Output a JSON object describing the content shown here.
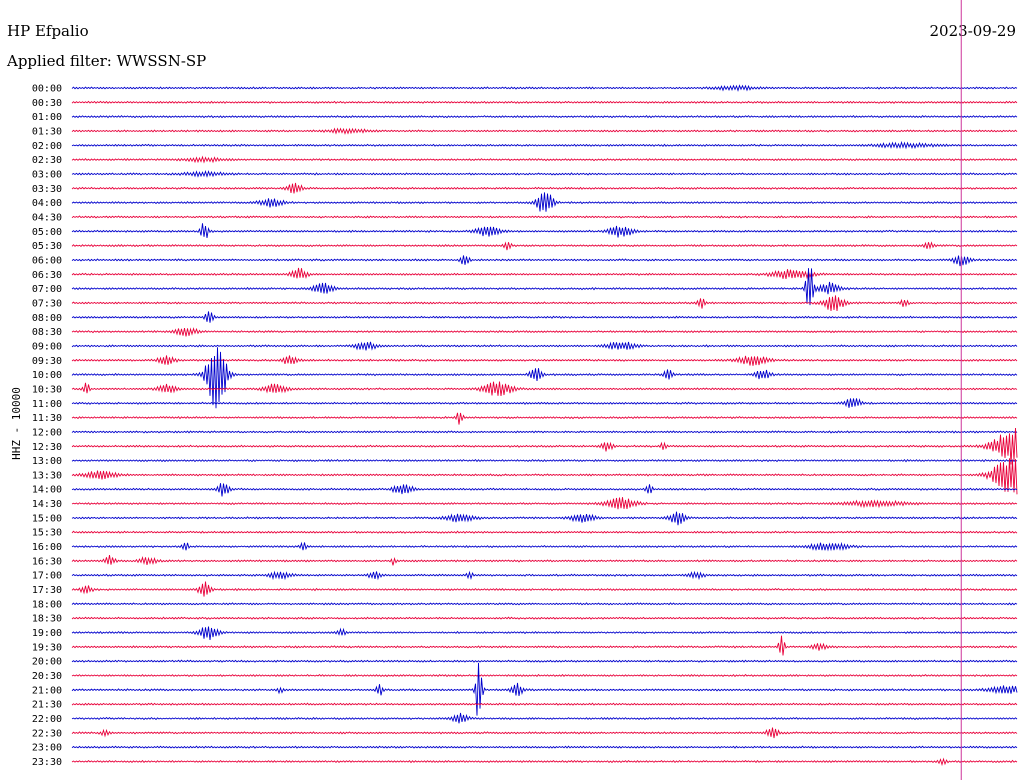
{
  "header": {
    "station": "HP Efpalio",
    "date": "2023-09-29",
    "filter": "Applied filter: WWSSN-SP",
    "ylabel": "HHZ - 10000"
  },
  "colors": {
    "blue": "#0000cc",
    "red": "#e8003a",
    "marker": "#cc3399"
  },
  "chart_data": {
    "type": "line",
    "title": "HP Efpalio",
    "subtitle": "Applied filter: WWSSN-SP",
    "ylabel": "HHZ - 10000",
    "xlabel": "",
    "rows": [
      "00:00",
      "00:30",
      "01:00",
      "01:30",
      "02:00",
      "02:30",
      "03:00",
      "03:30",
      "04:00",
      "04:30",
      "05:00",
      "05:30",
      "06:00",
      "06:30",
      "07:00",
      "07:30",
      "08:00",
      "08:30",
      "09:00",
      "09:30",
      "10:00",
      "10:30",
      "11:00",
      "11:30",
      "12:00",
      "12:30",
      "13:00",
      "13:30",
      "14:00",
      "14:30",
      "15:00",
      "15:30",
      "16:00",
      "16:30",
      "17:00",
      "17:30",
      "18:00",
      "18:30",
      "19:00",
      "19:30",
      "20:00",
      "20:30",
      "21:00",
      "21:30",
      "22:00",
      "22:30",
      "23:00",
      "23:30"
    ],
    "row_minutes": 30,
    "current_time_fraction": 0.94,
    "grid": false,
    "events": [
      {
        "row": 0,
        "t": 0.7,
        "amp": 2,
        "w": 0.02
      },
      {
        "row": 3,
        "t": 0.29,
        "amp": 2,
        "w": 0.02
      },
      {
        "row": 4,
        "t": 0.88,
        "amp": 2,
        "w": 0.03
      },
      {
        "row": 5,
        "t": 0.14,
        "amp": 2,
        "w": 0.02
      },
      {
        "row": 6,
        "t": 0.14,
        "amp": 2,
        "w": 0.02
      },
      {
        "row": 7,
        "t": 0.235,
        "amp": 5,
        "w": 0.008
      },
      {
        "row": 8,
        "t": 0.21,
        "amp": 4,
        "w": 0.012
      },
      {
        "row": 8,
        "t": 0.5,
        "amp": 13,
        "w": 0.008
      },
      {
        "row": 10,
        "t": 0.14,
        "amp": 10,
        "w": 0.004
      },
      {
        "row": 10,
        "t": 0.44,
        "amp": 6,
        "w": 0.012
      },
      {
        "row": 10,
        "t": 0.58,
        "amp": 6,
        "w": 0.012
      },
      {
        "row": 11,
        "t": 0.46,
        "amp": 4,
        "w": 0.004
      },
      {
        "row": 11,
        "t": 0.905,
        "amp": 4,
        "w": 0.005
      },
      {
        "row": 12,
        "t": 0.415,
        "amp": 8,
        "w": 0.004
      },
      {
        "row": 12,
        "t": 0.94,
        "amp": 6,
        "w": 0.008
      },
      {
        "row": 13,
        "t": 0.24,
        "amp": 6,
        "w": 0.008
      },
      {
        "row": 13,
        "t": 0.76,
        "amp": 5,
        "w": 0.02
      },
      {
        "row": 14,
        "t": 0.265,
        "amp": 6,
        "w": 0.01
      },
      {
        "row": 14,
        "t": 0.78,
        "amp": 28,
        "w": 0.004
      },
      {
        "row": 14,
        "t": 0.8,
        "amp": 6,
        "w": 0.01
      },
      {
        "row": 15,
        "t": 0.665,
        "amp": 6,
        "w": 0.004
      },
      {
        "row": 15,
        "t": 0.805,
        "amp": 9,
        "w": 0.01
      },
      {
        "row": 15,
        "t": 0.88,
        "amp": 4,
        "w": 0.004
      },
      {
        "row": 16,
        "t": 0.145,
        "amp": 8,
        "w": 0.004
      },
      {
        "row": 17,
        "t": 0.12,
        "amp": 4,
        "w": 0.012
      },
      {
        "row": 18,
        "t": 0.31,
        "amp": 5,
        "w": 0.01
      },
      {
        "row": 18,
        "t": 0.58,
        "amp": 4,
        "w": 0.015
      },
      {
        "row": 19,
        "t": 0.1,
        "amp": 5,
        "w": 0.008
      },
      {
        "row": 19,
        "t": 0.23,
        "amp": 5,
        "w": 0.008
      },
      {
        "row": 19,
        "t": 0.72,
        "amp": 5,
        "w": 0.015
      },
      {
        "row": 20,
        "t": 0.153,
        "amp": 36,
        "w": 0.01
      },
      {
        "row": 20,
        "t": 0.49,
        "amp": 8,
        "w": 0.006
      },
      {
        "row": 20,
        "t": 0.63,
        "amp": 7,
        "w": 0.004
      },
      {
        "row": 20,
        "t": 0.73,
        "amp": 5,
        "w": 0.008
      },
      {
        "row": 21,
        "t": 0.015,
        "amp": 8,
        "w": 0.003
      },
      {
        "row": 21,
        "t": 0.1,
        "amp": 4,
        "w": 0.01
      },
      {
        "row": 21,
        "t": 0.215,
        "amp": 5,
        "w": 0.012
      },
      {
        "row": 21,
        "t": 0.45,
        "amp": 7,
        "w": 0.015
      },
      {
        "row": 22,
        "t": 0.825,
        "amp": 6,
        "w": 0.008
      },
      {
        "row": 23,
        "t": 0.41,
        "amp": 8,
        "w": 0.003
      },
      {
        "row": 25,
        "t": 0.565,
        "amp": 5,
        "w": 0.006
      },
      {
        "row": 25,
        "t": 0.625,
        "amp": 4,
        "w": 0.003
      },
      {
        "row": 25,
        "t": 0.995,
        "amp": 18,
        "w": 0.02
      },
      {
        "row": 27,
        "t": 0.03,
        "amp": 5,
        "w": 0.015
      },
      {
        "row": 27,
        "t": 0.995,
        "amp": 20,
        "w": 0.02
      },
      {
        "row": 28,
        "t": 0.16,
        "amp": 7,
        "w": 0.006
      },
      {
        "row": 28,
        "t": 0.35,
        "amp": 5,
        "w": 0.01
      },
      {
        "row": 28,
        "t": 0.61,
        "amp": 5,
        "w": 0.003
      },
      {
        "row": 29,
        "t": 0.58,
        "amp": 6,
        "w": 0.015
      },
      {
        "row": 29,
        "t": 0.85,
        "amp": 3,
        "w": 0.03
      },
      {
        "row": 30,
        "t": 0.41,
        "amp": 4,
        "w": 0.015
      },
      {
        "row": 30,
        "t": 0.54,
        "amp": 5,
        "w": 0.012
      },
      {
        "row": 30,
        "t": 0.64,
        "amp": 7,
        "w": 0.008
      },
      {
        "row": 32,
        "t": 0.12,
        "amp": 5,
        "w": 0.003
      },
      {
        "row": 32,
        "t": 0.245,
        "amp": 5,
        "w": 0.003
      },
      {
        "row": 32,
        "t": 0.8,
        "amp": 4,
        "w": 0.02
      },
      {
        "row": 33,
        "t": 0.04,
        "amp": 5,
        "w": 0.005
      },
      {
        "row": 33,
        "t": 0.08,
        "amp": 4,
        "w": 0.008
      },
      {
        "row": 33,
        "t": 0.34,
        "amp": 4,
        "w": 0.003
      },
      {
        "row": 34,
        "t": 0.22,
        "amp": 4,
        "w": 0.01
      },
      {
        "row": 34,
        "t": 0.32,
        "amp": 4,
        "w": 0.006
      },
      {
        "row": 34,
        "t": 0.42,
        "amp": 4,
        "w": 0.003
      },
      {
        "row": 34,
        "t": 0.66,
        "amp": 3,
        "w": 0.008
      },
      {
        "row": 35,
        "t": 0.015,
        "amp": 4,
        "w": 0.006
      },
      {
        "row": 35,
        "t": 0.14,
        "amp": 9,
        "w": 0.006
      },
      {
        "row": 38,
        "t": 0.145,
        "amp": 8,
        "w": 0.01
      },
      {
        "row": 38,
        "t": 0.285,
        "amp": 3,
        "w": 0.005
      },
      {
        "row": 39,
        "t": 0.75,
        "amp": 12,
        "w": 0.003
      },
      {
        "row": 39,
        "t": 0.79,
        "amp": 3,
        "w": 0.008
      },
      {
        "row": 42,
        "t": 0.22,
        "amp": 3,
        "w": 0.003
      },
      {
        "row": 42,
        "t": 0.325,
        "amp": 7,
        "w": 0.003
      },
      {
        "row": 42,
        "t": 0.43,
        "amp": 42,
        "w": 0.003
      },
      {
        "row": 42,
        "t": 0.47,
        "amp": 7,
        "w": 0.006
      },
      {
        "row": 42,
        "t": 0.99,
        "amp": 4,
        "w": 0.02
      },
      {
        "row": 44,
        "t": 0.41,
        "amp": 5,
        "w": 0.008
      },
      {
        "row": 45,
        "t": 0.035,
        "amp": 3,
        "w": 0.004
      },
      {
        "row": 45,
        "t": 0.74,
        "amp": 6,
        "w": 0.006
      },
      {
        "row": 47,
        "t": 0.92,
        "amp": 3,
        "w": 0.004
      }
    ]
  }
}
